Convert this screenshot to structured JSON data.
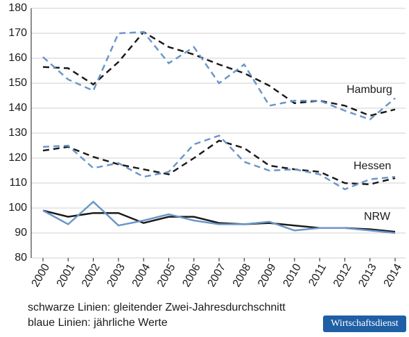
{
  "chart_data": {
    "type": "line",
    "categories": [
      "2000",
      "2001",
      "2002",
      "2003",
      "2004",
      "2005",
      "2006",
      "2007",
      "2008",
      "2009",
      "2010",
      "2011",
      "2012",
      "2013",
      "2014"
    ],
    "ylim": [
      80,
      180
    ],
    "yticks": [
      80,
      90,
      100,
      110,
      120,
      130,
      140,
      150,
      160,
      170,
      180
    ],
    "grid": true,
    "series": [
      {
        "name": "Hamburg",
        "color": "#1a1a1a",
        "dashed": true,
        "values": [
          156.5,
          156,
          149.5,
          158.5,
          170.5,
          164.5,
          161.5,
          157.5,
          154,
          149,
          142,
          143,
          141,
          137,
          139.5
        ]
      },
      {
        "color": "#6a96c8",
        "dashed": true,
        "values": [
          160.5,
          151.5,
          147,
          170,
          170.5,
          158,
          164.5,
          150,
          157.5,
          141,
          143,
          143,
          139,
          135.5,
          144
        ]
      },
      {
        "name": "Hessen",
        "color": "#1a1a1a",
        "dashed": true,
        "values": [
          123,
          124.5,
          120.5,
          117.5,
          115.5,
          113.5,
          120,
          127,
          124,
          117,
          115.5,
          114.5,
          110,
          109.5,
          112
        ]
      },
      {
        "color": "#6a96c8",
        "dashed": true,
        "values": [
          124.5,
          125,
          116,
          118,
          112.5,
          114.5,
          125.5,
          129,
          118.5,
          115,
          115.5,
          113.5,
          107.5,
          111.5,
          112.5
        ]
      },
      {
        "name": "NRW",
        "color": "#1a1a1a",
        "dashed": false,
        "values": [
          99,
          96.5,
          98,
          98,
          94,
          96.5,
          96.5,
          94,
          93.5,
          94,
          93,
          92,
          92,
          91.5,
          90.5
        ]
      },
      {
        "color": "#6a96c8",
        "dashed": false,
        "values": [
          99,
          93.5,
          102.5,
          93,
          95,
          97.5,
          95,
          93.5,
          93.5,
          94.5,
          91,
          92,
          92,
          91,
          90
        ]
      }
    ],
    "notes": [
      "schwarze Linien: gleitender Zwei-Jahresdurchschnitt",
      "blaue Linien: jährliche Werte"
    ],
    "source": "Wirtschaftsdienst"
  }
}
